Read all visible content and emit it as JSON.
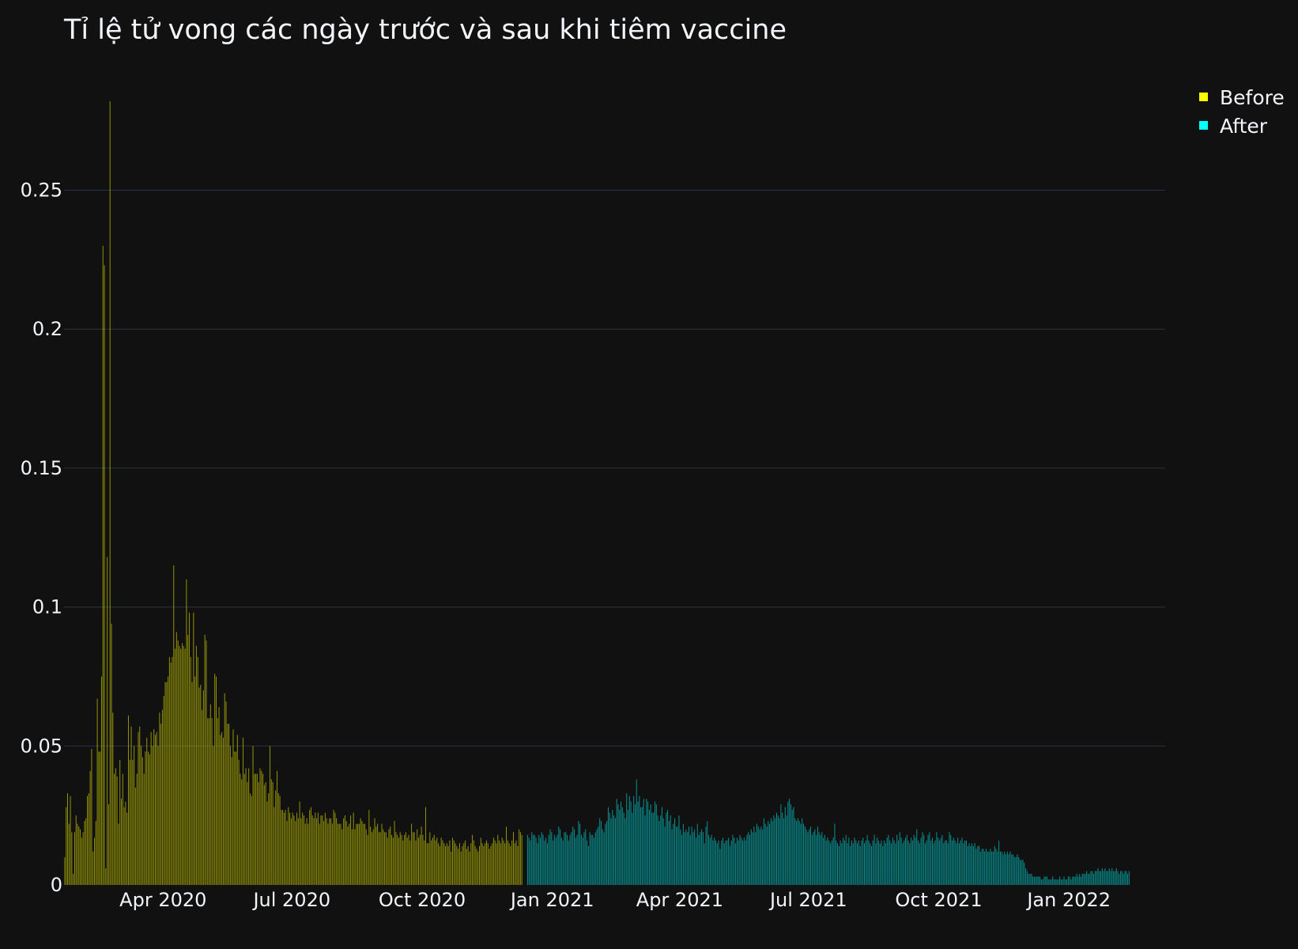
{
  "chart_data": {
    "type": "bar",
    "title": "Tỉ lệ tử vong các ngày trước và sau khi tiêm vaccine",
    "xlabel": "",
    "ylabel": "",
    "x_range": [
      "2020-01-22",
      "2022-03-09"
    ],
    "ylim": [
      0,
      0.29
    ],
    "y_ticks": [
      {
        "value": 0,
        "label": "0"
      },
      {
        "value": 0.05,
        "label": "0.05"
      },
      {
        "value": 0.1,
        "label": "0.1"
      },
      {
        "value": 0.15,
        "label": "0.15"
      },
      {
        "value": 0.2,
        "label": "0.2"
      },
      {
        "value": 0.25,
        "label": "0.25"
      }
    ],
    "x_ticks": [
      {
        "date": "2020-04-01",
        "label": "Apr 2020"
      },
      {
        "date": "2020-07-01",
        "label": "Jul 2020"
      },
      {
        "date": "2020-10-01",
        "label": "Oct 2020"
      },
      {
        "date": "2021-01-01",
        "label": "Jan 2021"
      },
      {
        "date": "2021-04-01",
        "label": "Apr 2021"
      },
      {
        "date": "2021-07-01",
        "label": "Jul 2021"
      },
      {
        "date": "2021-10-01",
        "label": "Oct 2021"
      },
      {
        "date": "2022-01-01",
        "label": "Jan 2022"
      }
    ],
    "grid": true,
    "legend_position": "top-right",
    "series": [
      {
        "name": "Before",
        "color": "#ffff00",
        "start_date": "2020-01-22",
        "values": [
          0.01,
          0.028,
          0.033,
          0.022,
          0.032,
          0.019,
          0.004,
          0.019,
          0.025,
          0.022,
          0.021,
          0.02,
          0.017,
          0.019,
          0.023,
          0.024,
          0.032,
          0.033,
          0.041,
          0.049,
          0.012,
          0.017,
          0.023,
          0.067,
          0.048,
          0.048,
          0.075,
          0.23,
          0.223,
          0.006,
          0.118,
          0.029,
          0.282,
          0.094,
          0.062,
          0.04,
          0.042,
          0.039,
          0.022,
          0.045,
          0.031,
          0.04,
          0.028,
          0.03,
          0.026,
          0.061,
          0.045,
          0.057,
          0.045,
          0.05,
          0.035,
          0.04,
          0.055,
          0.057,
          0.05,
          0.046,
          0.04,
          0.048,
          0.053,
          0.048,
          0.047,
          0.055,
          0.05,
          0.056,
          0.054,
          0.055,
          0.05,
          0.062,
          0.058,
          0.063,
          0.068,
          0.073,
          0.073,
          0.075,
          0.082,
          0.08,
          0.082,
          0.115,
          0.085,
          0.091,
          0.088,
          0.086,
          0.085,
          0.087,
          0.086,
          0.085,
          0.11,
          0.09,
          0.098,
          0.082,
          0.073,
          0.098,
          0.075,
          0.086,
          0.082,
          0.071,
          0.072,
          0.063,
          0.07,
          0.09,
          0.088,
          0.06,
          0.06,
          0.065,
          0.06,
          0.05,
          0.076,
          0.075,
          0.06,
          0.064,
          0.054,
          0.055,
          0.053,
          0.069,
          0.066,
          0.058,
          0.058,
          0.05,
          0.046,
          0.056,
          0.048,
          0.048,
          0.054,
          0.045,
          0.04,
          0.038,
          0.053,
          0.04,
          0.042,
          0.037,
          0.042,
          0.033,
          0.032,
          0.05,
          0.04,
          0.04,
          0.04,
          0.037,
          0.042,
          0.041,
          0.04,
          0.036,
          0.037,
          0.03,
          0.033,
          0.05,
          0.038,
          0.037,
          0.028,
          0.034,
          0.041,
          0.033,
          0.032,
          0.027,
          0.027,
          0.026,
          0.027,
          0.023,
          0.028,
          0.026,
          0.024,
          0.026,
          0.025,
          0.023,
          0.026,
          0.024,
          0.03,
          0.024,
          0.026,
          0.025,
          0.022,
          0.024,
          0.022,
          0.027,
          0.028,
          0.025,
          0.024,
          0.026,
          0.024,
          0.026,
          0.022,
          0.025,
          0.025,
          0.023,
          0.026,
          0.024,
          0.022,
          0.024,
          0.024,
          0.022,
          0.027,
          0.026,
          0.024,
          0.022,
          0.022,
          0.022,
          0.02,
          0.024,
          0.025,
          0.023,
          0.021,
          0.022,
          0.025,
          0.02,
          0.026,
          0.02,
          0.022,
          0.022,
          0.022,
          0.024,
          0.023,
          0.022,
          0.022,
          0.02,
          0.018,
          0.027,
          0.021,
          0.019,
          0.02,
          0.024,
          0.021,
          0.022,
          0.019,
          0.019,
          0.022,
          0.02,
          0.019,
          0.019,
          0.017,
          0.02,
          0.021,
          0.018,
          0.017,
          0.023,
          0.019,
          0.018,
          0.017,
          0.019,
          0.018,
          0.016,
          0.018,
          0.019,
          0.017,
          0.018,
          0.016,
          0.022,
          0.019,
          0.019,
          0.016,
          0.02,
          0.017,
          0.018,
          0.021,
          0.018,
          0.016,
          0.028,
          0.015,
          0.015,
          0.019,
          0.016,
          0.017,
          0.018,
          0.016,
          0.017,
          0.015,
          0.014,
          0.017,
          0.016,
          0.015,
          0.014,
          0.015,
          0.014,
          0.016,
          0.012,
          0.017,
          0.016,
          0.015,
          0.014,
          0.013,
          0.015,
          0.012,
          0.014,
          0.015,
          0.016,
          0.013,
          0.014,
          0.012,
          0.015,
          0.018,
          0.016,
          0.014,
          0.013,
          0.012,
          0.014,
          0.017,
          0.015,
          0.014,
          0.015,
          0.016,
          0.015,
          0.013,
          0.014,
          0.015,
          0.017,
          0.016,
          0.015,
          0.018,
          0.016,
          0.015,
          0.017,
          0.016,
          0.015,
          0.021,
          0.016,
          0.015,
          0.014,
          0.016,
          0.019,
          0.015,
          0.016,
          0.014,
          0.02,
          0.019,
          0.018
        ]
      },
      {
        "name": "After",
        "color": "#00ffff",
        "start_date": "2020-12-14",
        "values": [
          0.018,
          0.017,
          0.016,
          0.019,
          0.018,
          0.018,
          0.017,
          0.015,
          0.018,
          0.017,
          0.019,
          0.018,
          0.016,
          0.017,
          0.015,
          0.018,
          0.02,
          0.019,
          0.016,
          0.018,
          0.017,
          0.018,
          0.021,
          0.02,
          0.017,
          0.016,
          0.019,
          0.019,
          0.018,
          0.016,
          0.018,
          0.019,
          0.021,
          0.02,
          0.017,
          0.018,
          0.023,
          0.022,
          0.018,
          0.017,
          0.019,
          0.02,
          0.016,
          0.014,
          0.019,
          0.018,
          0.018,
          0.017,
          0.019,
          0.02,
          0.021,
          0.024,
          0.023,
          0.02,
          0.019,
          0.022,
          0.023,
          0.028,
          0.026,
          0.024,
          0.027,
          0.025,
          0.024,
          0.031,
          0.029,
          0.027,
          0.03,
          0.028,
          0.026,
          0.024,
          0.033,
          0.027,
          0.032,
          0.03,
          0.026,
          0.032,
          0.029,
          0.038,
          0.03,
          0.032,
          0.028,
          0.028,
          0.031,
          0.025,
          0.031,
          0.03,
          0.027,
          0.029,
          0.026,
          0.026,
          0.03,
          0.029,
          0.025,
          0.023,
          0.025,
          0.028,
          0.024,
          0.021,
          0.026,
          0.027,
          0.023,
          0.025,
          0.02,
          0.022,
          0.024,
          0.021,
          0.021,
          0.025,
          0.02,
          0.018,
          0.022,
          0.019,
          0.02,
          0.019,
          0.021,
          0.018,
          0.021,
          0.019,
          0.02,
          0.017,
          0.022,
          0.018,
          0.019,
          0.02,
          0.019,
          0.015,
          0.021,
          0.023,
          0.018,
          0.017,
          0.018,
          0.016,
          0.017,
          0.016,
          0.015,
          0.016,
          0.013,
          0.016,
          0.017,
          0.015,
          0.016,
          0.016,
          0.017,
          0.014,
          0.016,
          0.018,
          0.017,
          0.015,
          0.017,
          0.016,
          0.018,
          0.017,
          0.016,
          0.017,
          0.016,
          0.018,
          0.019,
          0.018,
          0.02,
          0.019,
          0.021,
          0.019,
          0.022,
          0.021,
          0.02,
          0.021,
          0.02,
          0.024,
          0.022,
          0.021,
          0.023,
          0.022,
          0.024,
          0.023,
          0.025,
          0.024,
          0.026,
          0.025,
          0.024,
          0.029,
          0.026,
          0.024,
          0.028,
          0.025,
          0.03,
          0.031,
          0.029,
          0.027,
          0.028,
          0.024,
          0.023,
          0.024,
          0.023,
          0.022,
          0.024,
          0.022,
          0.021,
          0.02,
          0.019,
          0.02,
          0.021,
          0.018,
          0.019,
          0.02,
          0.018,
          0.021,
          0.019,
          0.018,
          0.019,
          0.017,
          0.018,
          0.016,
          0.017,
          0.016,
          0.015,
          0.016,
          0.017,
          0.022,
          0.016,
          0.015,
          0.014,
          0.016,
          0.015,
          0.017,
          0.016,
          0.018,
          0.015,
          0.017,
          0.014,
          0.016,
          0.015,
          0.017,
          0.016,
          0.015,
          0.016,
          0.014,
          0.016,
          0.017,
          0.015,
          0.016,
          0.018,
          0.016,
          0.015,
          0.014,
          0.016,
          0.018,
          0.015,
          0.017,
          0.016,
          0.015,
          0.016,
          0.014,
          0.016,
          0.015,
          0.017,
          0.018,
          0.016,
          0.015,
          0.017,
          0.016,
          0.015,
          0.018,
          0.016,
          0.019,
          0.017,
          0.015,
          0.016,
          0.017,
          0.018,
          0.016,
          0.015,
          0.017,
          0.016,
          0.018,
          0.017,
          0.02,
          0.016,
          0.015,
          0.017,
          0.019,
          0.018,
          0.015,
          0.016,
          0.018,
          0.019,
          0.016,
          0.017,
          0.015,
          0.016,
          0.019,
          0.017,
          0.016,
          0.017,
          0.018,
          0.015,
          0.016,
          0.016,
          0.015,
          0.019,
          0.018,
          0.016,
          0.017,
          0.016,
          0.015,
          0.017,
          0.015,
          0.016,
          0.017,
          0.015,
          0.016,
          0.016,
          0.014,
          0.015,
          0.014,
          0.015,
          0.014,
          0.015,
          0.013,
          0.014,
          0.014,
          0.012,
          0.013,
          0.013,
          0.012,
          0.013,
          0.012,
          0.012,
          0.013,
          0.012,
          0.012,
          0.014,
          0.013,
          0.012,
          0.016,
          0.012,
          0.012,
          0.011,
          0.012,
          0.011,
          0.012,
          0.011,
          0.012,
          0.011,
          0.011,
          0.01,
          0.01,
          0.011,
          0.01,
          0.009,
          0.009,
          0.009,
          0.008,
          0.006,
          0.005,
          0.004,
          0.004,
          0.004,
          0.003,
          0.003,
          0.003,
          0.003,
          0.003,
          0.003,
          0.002,
          0.002,
          0.003,
          0.003,
          0.003,
          0.002,
          0.002,
          0.002,
          0.003,
          0.002,
          0.002,
          0.002,
          0.002,
          0.003,
          0.002,
          0.002,
          0.003,
          0.002,
          0.002,
          0.003,
          0.003,
          0.002,
          0.003,
          0.003,
          0.003,
          0.004,
          0.003,
          0.004,
          0.003,
          0.004,
          0.004,
          0.004,
          0.005,
          0.004,
          0.004,
          0.005,
          0.005,
          0.004,
          0.005,
          0.005,
          0.006,
          0.005,
          0.005,
          0.006,
          0.005,
          0.006,
          0.005,
          0.005,
          0.006,
          0.005,
          0.006,
          0.005,
          0.005,
          0.006,
          0.005,
          0.004,
          0.005,
          0.005,
          0.004,
          0.005,
          0.005,
          0.004,
          0.005
        ]
      }
    ]
  }
}
